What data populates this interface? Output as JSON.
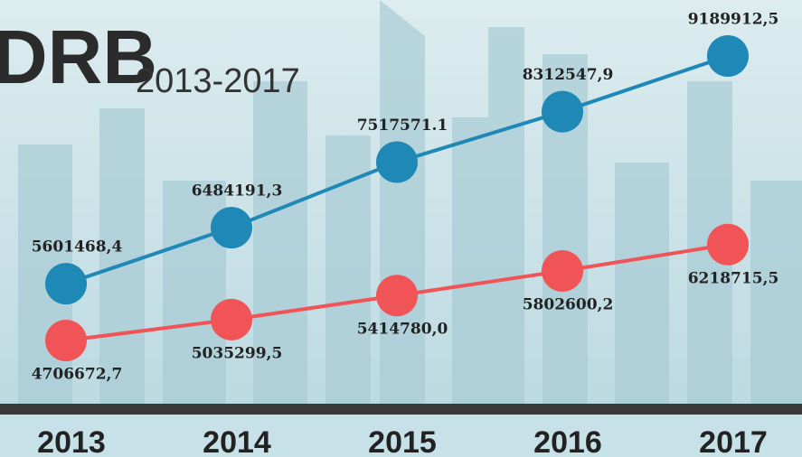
{
  "chart_data": {
    "type": "line",
    "title": "DRB",
    "subtitle": "2013-2017",
    "categories": [
      "2013",
      "2014",
      "2015",
      "2016",
      "2017"
    ],
    "series": [
      {
        "color": "#1e88b6",
        "values": [
          5601468.4,
          6484191.3,
          7517571.1,
          8312547.9,
          9189912.5
        ],
        "value_labels": [
          "5601468,4",
          "6484191,3",
          "7517571.1",
          "8312547,9",
          "9189912,5"
        ]
      },
      {
        "color": "#f05457",
        "values": [
          4706672.7,
          5035299.5,
          5414780.0,
          5802600.2,
          6218715.5
        ],
        "value_labels": [
          "4706672,7",
          "5035299,5",
          "5414780,0",
          "5802600,2",
          "6218715,5"
        ]
      }
    ]
  }
}
